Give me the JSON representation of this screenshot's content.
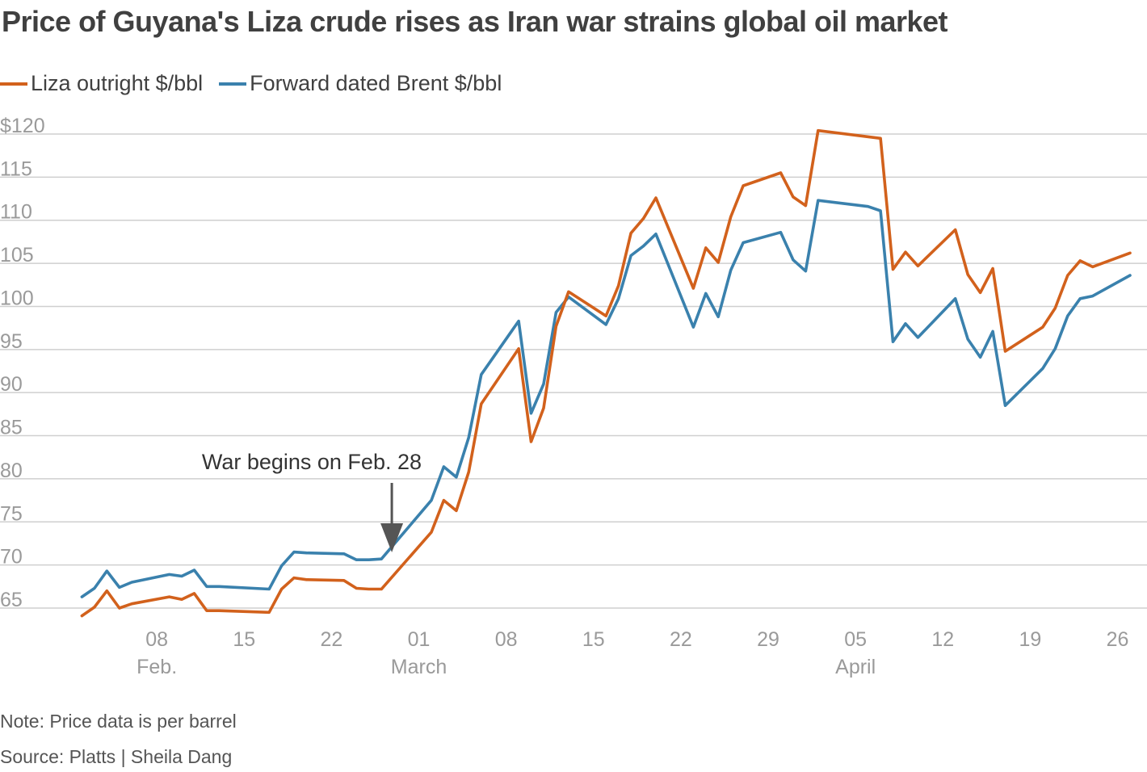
{
  "title": "Price of Guyana's Liza crude rises as Iran war strains global oil market",
  "note": "Note: Price data is per barrel",
  "source": "Source: Platts | Sheila Dang",
  "colors": {
    "liza": "#d2611c",
    "brent": "#3a81ad",
    "grid": "#cfcfcf",
    "axis_text": "#9a9a9a",
    "annotation": "#555555"
  },
  "chart_data": {
    "type": "line",
    "title": "Price of Guyana's Liza crude rises as Iran war strains global oil market",
    "xlabel": "",
    "ylabel": "",
    "ylim": [
      62.5,
      121
    ],
    "y_ticks": [
      {
        "value": 120,
        "label": "$120"
      },
      {
        "value": 115,
        "label": "115"
      },
      {
        "value": 110,
        "label": "110"
      },
      {
        "value": 105,
        "label": "105"
      },
      {
        "value": 100,
        "label": "100"
      },
      {
        "value": 95,
        "label": "95"
      },
      {
        "value": 90,
        "label": "90"
      },
      {
        "value": 85,
        "label": "85"
      },
      {
        "value": 80,
        "label": "80"
      },
      {
        "value": 75,
        "label": "75"
      },
      {
        "value": 70,
        "label": "70"
      },
      {
        "value": 65,
        "label": "65"
      }
    ],
    "x_ticks": [
      {
        "date": "2026-02-08",
        "label": "08",
        "month": "Feb."
      },
      {
        "date": "2026-02-15",
        "label": "15",
        "month": ""
      },
      {
        "date": "2026-02-22",
        "label": "22",
        "month": ""
      },
      {
        "date": "2026-03-01",
        "label": "01",
        "month": "March"
      },
      {
        "date": "2026-03-08",
        "label": "08",
        "month": ""
      },
      {
        "date": "2026-03-15",
        "label": "15",
        "month": ""
      },
      {
        "date": "2026-03-22",
        "label": "22",
        "month": ""
      },
      {
        "date": "2026-03-29",
        "label": "29",
        "month": ""
      },
      {
        "date": "2026-04-05",
        "label": "05",
        "month": "April"
      },
      {
        "date": "2026-04-12",
        "label": "12",
        "month": ""
      },
      {
        "date": "2026-04-19",
        "label": "19",
        "month": ""
      },
      {
        "date": "2026-04-26",
        "label": "26",
        "month": ""
      }
    ],
    "xlim": [
      "2026-02-01",
      "2026-04-27"
    ],
    "grid": true,
    "legend": "top-left",
    "annotation": {
      "text": "War begins on Feb. 28",
      "date": "2026-02-28"
    },
    "series": [
      {
        "name": "Liza outright $/bbl",
        "color": "#d2611c",
        "points": [
          [
            "2026-02-02",
            64.1
          ],
          [
            "2026-02-03",
            65.1
          ],
          [
            "2026-02-04",
            67.0
          ],
          [
            "2026-02-05",
            65.0
          ],
          [
            "2026-02-06",
            65.5
          ],
          [
            "2026-02-09",
            66.3
          ],
          [
            "2026-02-10",
            66.0
          ],
          [
            "2026-02-11",
            66.7
          ],
          [
            "2026-02-12",
            64.7
          ],
          [
            "2026-02-13",
            64.7
          ],
          [
            "2026-02-17",
            64.5
          ],
          [
            "2026-02-18",
            67.2
          ],
          [
            "2026-02-19",
            68.5
          ],
          [
            "2026-02-20",
            68.3
          ],
          [
            "2026-02-23",
            68.2
          ],
          [
            "2026-02-24",
            67.3
          ],
          [
            "2026-02-25",
            67.2
          ],
          [
            "2026-02-26",
            67.2
          ],
          [
            "2026-03-02",
            73.8
          ],
          [
            "2026-03-03",
            77.5
          ],
          [
            "2026-03-04",
            76.3
          ],
          [
            "2026-03-05",
            80.8
          ],
          [
            "2026-03-06",
            88.7
          ],
          [
            "2026-03-09",
            95.1
          ],
          [
            "2026-03-10",
            84.3
          ],
          [
            "2026-03-11",
            88.2
          ],
          [
            "2026-03-12",
            97.7
          ],
          [
            "2026-03-13",
            101.7
          ],
          [
            "2026-03-16",
            98.9
          ],
          [
            "2026-03-17",
            102.4
          ],
          [
            "2026-03-18",
            108.5
          ],
          [
            "2026-03-19",
            110.2
          ],
          [
            "2026-03-20",
            112.6
          ],
          [
            "2026-03-23",
            102.1
          ],
          [
            "2026-03-24",
            106.8
          ],
          [
            "2026-03-25",
            105.1
          ],
          [
            "2026-03-26",
            110.4
          ],
          [
            "2026-03-27",
            114.0
          ],
          [
            "2026-03-30",
            115.5
          ],
          [
            "2026-03-31",
            112.7
          ],
          [
            "2026-04-01",
            111.7
          ],
          [
            "2026-04-02",
            120.4
          ],
          [
            "2026-04-07",
            119.5
          ],
          [
            "2026-04-08",
            104.3
          ],
          [
            "2026-04-09",
            106.3
          ],
          [
            "2026-04-10",
            104.7
          ],
          [
            "2026-04-13",
            108.9
          ],
          [
            "2026-04-14",
            103.7
          ],
          [
            "2026-04-15",
            101.6
          ],
          [
            "2026-04-16",
            104.4
          ],
          [
            "2026-04-17",
            94.8
          ],
          [
            "2026-04-20",
            97.6
          ],
          [
            "2026-04-21",
            99.8
          ],
          [
            "2026-04-22",
            103.6
          ],
          [
            "2026-04-23",
            105.3
          ],
          [
            "2026-04-24",
            104.6
          ],
          [
            "2026-04-27",
            106.2
          ]
        ]
      },
      {
        "name": "Forward dated Brent $/bbl",
        "color": "#3a81ad",
        "points": [
          [
            "2026-02-02",
            66.3
          ],
          [
            "2026-02-03",
            67.3
          ],
          [
            "2026-02-04",
            69.3
          ],
          [
            "2026-02-05",
            67.4
          ],
          [
            "2026-02-06",
            68.0
          ],
          [
            "2026-02-09",
            68.9
          ],
          [
            "2026-02-10",
            68.7
          ],
          [
            "2026-02-11",
            69.4
          ],
          [
            "2026-02-12",
            67.5
          ],
          [
            "2026-02-13",
            67.5
          ],
          [
            "2026-02-17",
            67.2
          ],
          [
            "2026-02-18",
            69.9
          ],
          [
            "2026-02-19",
            71.5
          ],
          [
            "2026-02-20",
            71.4
          ],
          [
            "2026-02-23",
            71.3
          ],
          [
            "2026-02-24",
            70.6
          ],
          [
            "2026-02-25",
            70.6
          ],
          [
            "2026-02-26",
            70.7
          ],
          [
            "2026-03-02",
            77.5
          ],
          [
            "2026-03-03",
            81.4
          ],
          [
            "2026-03-04",
            80.2
          ],
          [
            "2026-03-05",
            84.8
          ],
          [
            "2026-03-06",
            92.1
          ],
          [
            "2026-03-09",
            98.3
          ],
          [
            "2026-03-10",
            87.6
          ],
          [
            "2026-03-11",
            91.0
          ],
          [
            "2026-03-12",
            99.3
          ],
          [
            "2026-03-13",
            101.1
          ],
          [
            "2026-03-16",
            97.9
          ],
          [
            "2026-03-17",
            100.9
          ],
          [
            "2026-03-18",
            105.9
          ],
          [
            "2026-03-19",
            107.0
          ],
          [
            "2026-03-20",
            108.4
          ],
          [
            "2026-03-23",
            97.6
          ],
          [
            "2026-03-24",
            101.5
          ],
          [
            "2026-03-25",
            98.8
          ],
          [
            "2026-03-26",
            104.2
          ],
          [
            "2026-03-27",
            107.4
          ],
          [
            "2026-03-30",
            108.6
          ],
          [
            "2026-03-31",
            105.4
          ],
          [
            "2026-04-01",
            104.1
          ],
          [
            "2026-04-02",
            112.3
          ],
          [
            "2026-04-06",
            111.6
          ],
          [
            "2026-04-07",
            111.1
          ],
          [
            "2026-04-08",
            95.9
          ],
          [
            "2026-04-09",
            98.0
          ],
          [
            "2026-04-10",
            96.4
          ],
          [
            "2026-04-13",
            100.9
          ],
          [
            "2026-04-14",
            96.2
          ],
          [
            "2026-04-15",
            94.1
          ],
          [
            "2026-04-16",
            97.1
          ],
          [
            "2026-04-17",
            88.5
          ],
          [
            "2026-04-20",
            92.8
          ],
          [
            "2026-04-21",
            95.1
          ],
          [
            "2026-04-22",
            98.9
          ],
          [
            "2026-04-23",
            100.9
          ],
          [
            "2026-04-24",
            101.2
          ],
          [
            "2026-04-27",
            103.6
          ]
        ]
      }
    ]
  }
}
